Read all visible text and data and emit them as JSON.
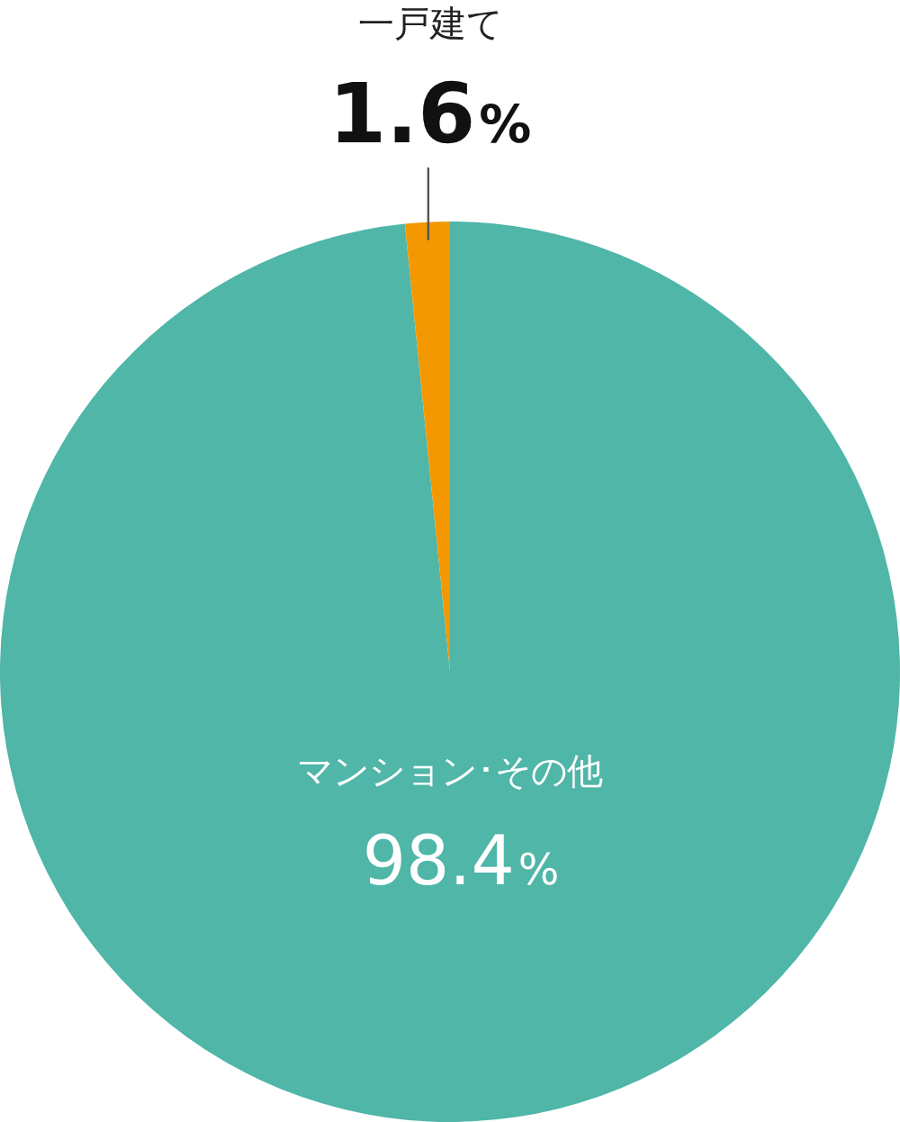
{
  "chart_data": {
    "type": "pie",
    "categories": [
      "マンション･その他",
      "一戸建て"
    ],
    "values": [
      98.4,
      1.6
    ],
    "colors": [
      "#4fb6a8",
      "#f39800"
    ],
    "value_labels": [
      "98.4%",
      "1.6%"
    ]
  }
}
